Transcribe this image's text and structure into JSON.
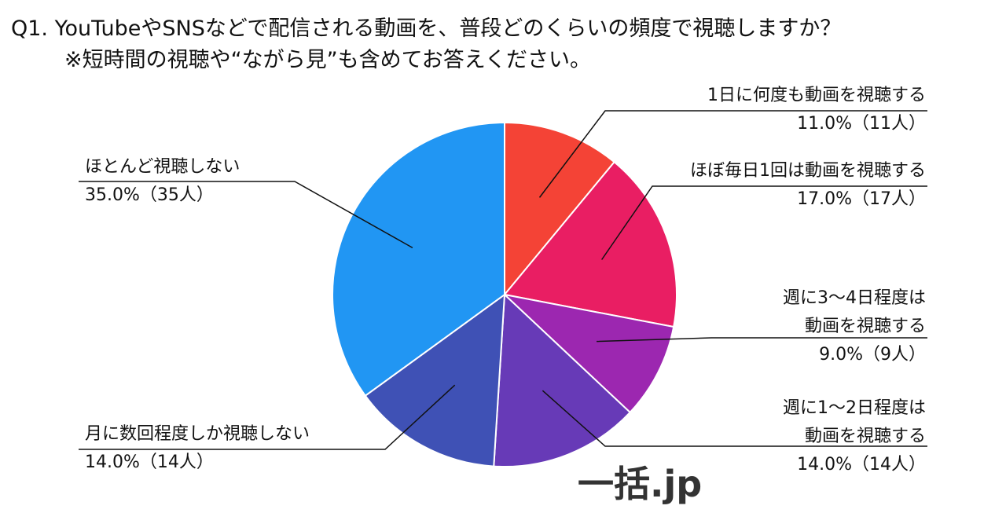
{
  "chart_data": {
    "type": "pie",
    "title": "Q1. YouTubeやSNSなどで配信される動画を、普段どのくらいの頻度で視聴しますか？",
    "subtitle": "※短時間の視聴や“ながら見”も含めてお答えください。",
    "categories": [
      "1日に何度も動画を視聴する",
      "ほぼ毎日1回は動画を視聴する",
      "週に3～4日程度は\n動画を視聴する",
      "週に1～2日程度は\n動画を視聴する",
      "月に数回程度しか視聴しない",
      "ほとんど視聴しない"
    ],
    "values": [
      11,
      17,
      9,
      14,
      14,
      35
    ],
    "value_labels": [
      "11.0%（11人）",
      "17.0%（17人）",
      "9.0%（9人）",
      "14.0%（14人）",
      "14.0%（14人）",
      "35.0%（35人）"
    ],
    "colors": [
      "#f44336",
      "#e91e63",
      "#9c27b0",
      "#673ab7",
      "#3f51b5",
      "#2196f3"
    ],
    "watermark": "一括.jp"
  }
}
